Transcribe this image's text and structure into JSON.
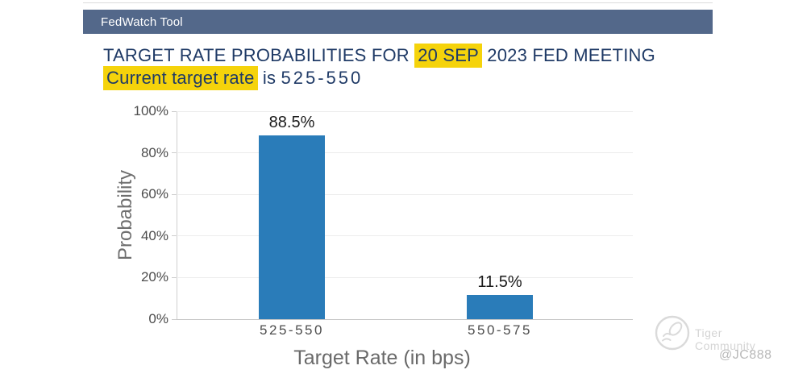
{
  "header": {
    "title": "FedWatch Tool"
  },
  "title": {
    "line1_pre": "TARGET RATE PROBABILITIES FOR ",
    "line1_highlight": "20 SEP",
    "line1_post": " 2023 FED MEETING",
    "line2_highlight": "Current target rate",
    "line2_mid": " is ",
    "line2_rate": "525-550"
  },
  "chart_data": {
    "type": "bar",
    "title": "TARGET RATE PROBABILITIES FOR 20 SEP 2023 FED MEETING",
    "categories": [
      "525-550",
      "550-575"
    ],
    "values": [
      88.5,
      11.5
    ],
    "value_labels": [
      "88.5%",
      "11.5%"
    ],
    "xlabel": "Target Rate (in bps)",
    "ylabel": "Probability",
    "ylim": [
      0,
      100
    ],
    "yticks": [
      "0%",
      "20%",
      "40%",
      "60%",
      "80%",
      "100%"
    ],
    "grid": "horizontal",
    "legend": "none",
    "bar_color": "#2a7cb9"
  },
  "watermark": {
    "community": "Tiger Community",
    "handle": "@JC888"
  },
  "colors": {
    "header_bg": "#53688a",
    "title_text": "#1f3a66",
    "highlight": "#f5d30b",
    "bar": "#2a7cb9",
    "gridline": "#ececec"
  }
}
